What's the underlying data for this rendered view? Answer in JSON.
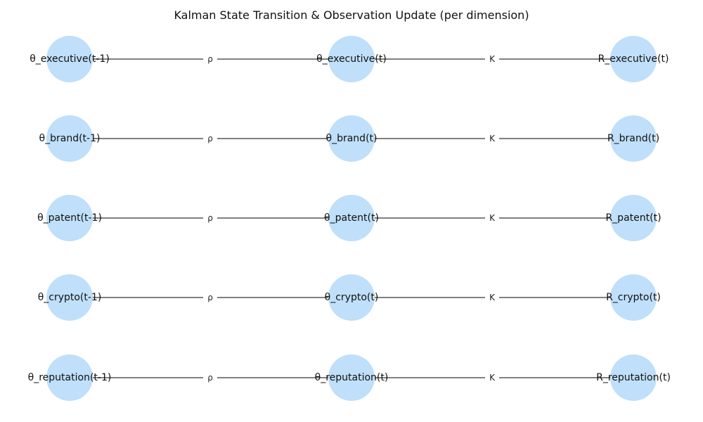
{
  "title": "Kalman State Transition & Observation Update (per dimension)",
  "colors": {
    "node_fill": "#bfdffa",
    "edge": "#808080",
    "text": "#111111"
  },
  "diagram": {
    "edge_labels": {
      "transition": "ρ",
      "update": "K"
    },
    "rows": [
      {
        "prev": "θ_executive(t-1)",
        "curr": "θ_executive(t)",
        "obs": "R_executive(t)"
      },
      {
        "prev": "θ_brand(t-1)",
        "curr": "θ_brand(t)",
        "obs": "R_brand(t)"
      },
      {
        "prev": "θ_patent(t-1)",
        "curr": "θ_patent(t)",
        "obs": "R_patent(t)"
      },
      {
        "prev": "θ_crypto(t-1)",
        "curr": "θ_crypto(t)",
        "obs": "R_crypto(t)"
      },
      {
        "prev": "θ_reputation(t-1)",
        "curr": "θ_reputation(t)",
        "obs": "R_reputation(t)"
      }
    ]
  }
}
